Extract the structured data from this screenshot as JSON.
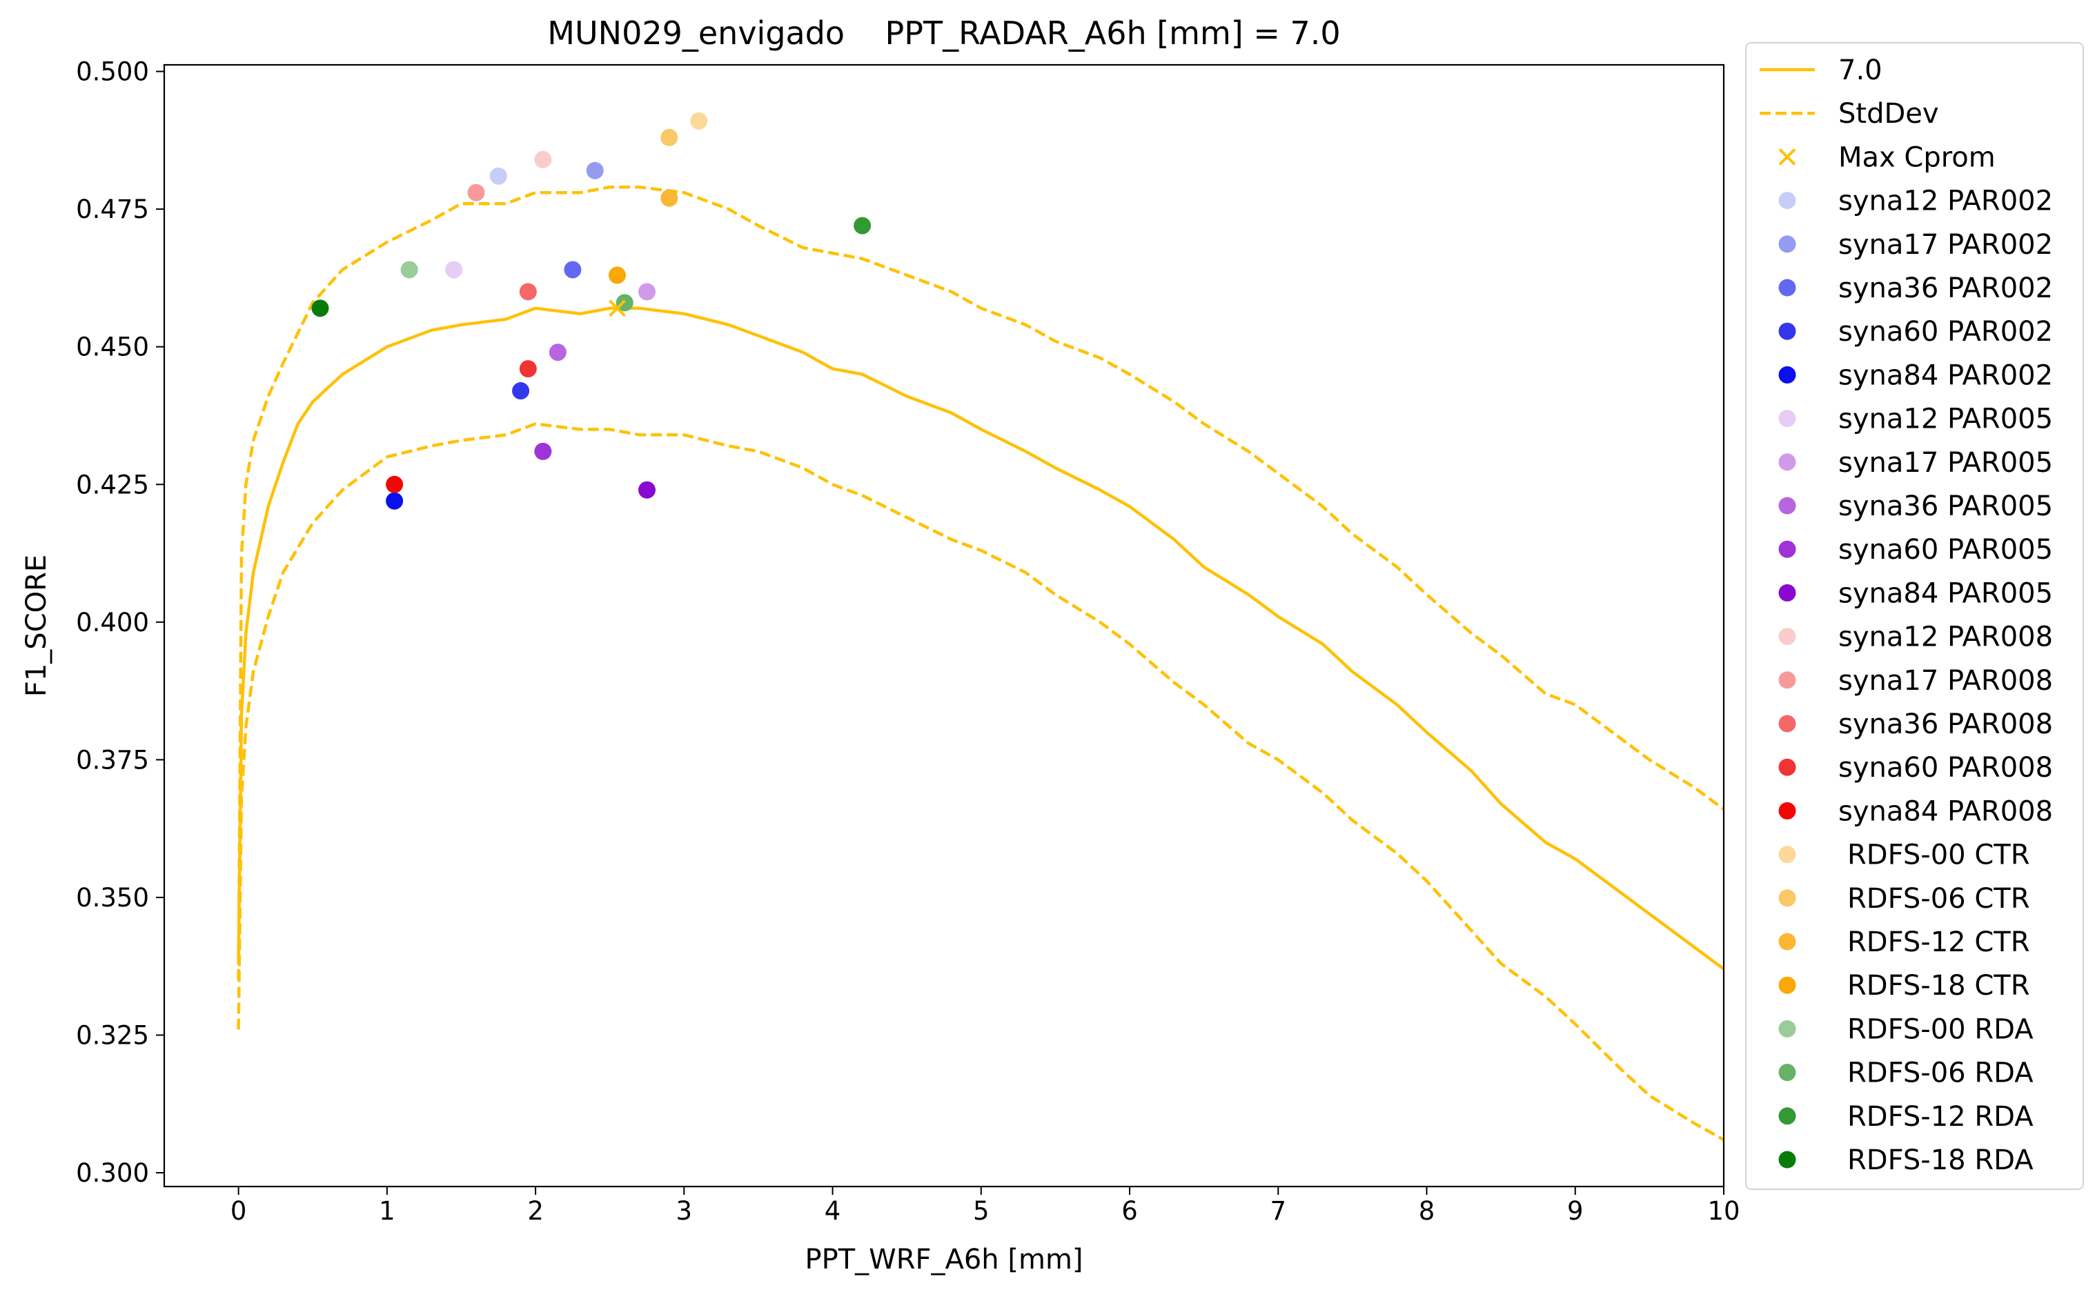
{
  "chart_data": {
    "type": "line",
    "title": "MUN029_envigado    PPT_RADAR_A6h [mm] = 7.0",
    "xlabel": "PPT_WRF_A6h [mm]",
    "ylabel": "F1_SCORE",
    "xlim": [
      -0.5,
      10
    ],
    "ylim": [
      0.2975,
      0.5012
    ],
    "xticks": [
      0,
      1,
      2,
      3,
      4,
      5,
      6,
      7,
      8,
      9,
      10
    ],
    "yticks": [
      0.3,
      0.325,
      0.35,
      0.375,
      0.4,
      0.425,
      0.45,
      0.475,
      0.5
    ],
    "xtick_labels": [
      "0",
      "1",
      "2",
      "3",
      "4",
      "5",
      "6",
      "7",
      "8",
      "9",
      "10"
    ],
    "ytick_labels": [
      "0.300",
      "0.325",
      "0.350",
      "0.375",
      "0.400",
      "0.425",
      "0.450",
      "0.475",
      "0.500"
    ],
    "grid": false,
    "legend_position": "outside-right",
    "line_color": "#ffc107",
    "curves": {
      "mean": {
        "name": "7.0",
        "style": "solid",
        "x": [
          0,
          0.02,
          0.05,
          0.1,
          0.15,
          0.2,
          0.3,
          0.4,
          0.5,
          0.7,
          1.0,
          1.3,
          1.5,
          1.8,
          2.0,
          2.3,
          2.5,
          2.7,
          3.0,
          3.3,
          3.5,
          3.8,
          4.0,
          4.2,
          4.5,
          4.8,
          5.0,
          5.3,
          5.5,
          5.8,
          6.0,
          6.3,
          6.5,
          6.8,
          7.0,
          7.3,
          7.5,
          7.8,
          8.0,
          8.3,
          8.5,
          8.8,
          9.0,
          9.3,
          9.5,
          9.8,
          10.0
        ],
        "y": [
          0.338,
          0.383,
          0.398,
          0.409,
          0.415,
          0.421,
          0.429,
          0.436,
          0.44,
          0.445,
          0.45,
          0.453,
          0.454,
          0.455,
          0.457,
          0.456,
          0.457,
          0.457,
          0.456,
          0.454,
          0.452,
          0.449,
          0.446,
          0.445,
          0.441,
          0.438,
          0.435,
          0.431,
          0.428,
          0.424,
          0.421,
          0.415,
          0.41,
          0.405,
          0.401,
          0.396,
          0.391,
          0.385,
          0.38,
          0.373,
          0.367,
          0.36,
          0.357,
          0.351,
          0.347,
          0.341,
          0.337
        ]
      },
      "upper": {
        "name": "StdDev",
        "style": "dashed",
        "x": [
          0,
          0.02,
          0.05,
          0.1,
          0.2,
          0.3,
          0.5,
          0.7,
          1.0,
          1.3,
          1.5,
          1.8,
          2.0,
          2.3,
          2.5,
          2.7,
          3.0,
          3.3,
          3.5,
          3.8,
          4.0,
          4.2,
          4.5,
          4.8,
          5.0,
          5.3,
          5.5,
          5.8,
          6.0,
          6.3,
          6.5,
          6.8,
          7.0,
          7.3,
          7.5,
          7.8,
          8.0,
          8.3,
          8.5,
          8.8,
          9.0,
          9.3,
          9.5,
          9.8,
          10.0
        ],
        "y": [
          0.335,
          0.412,
          0.425,
          0.433,
          0.441,
          0.447,
          0.458,
          0.464,
          0.469,
          0.473,
          0.476,
          0.476,
          0.478,
          0.478,
          0.479,
          0.479,
          0.478,
          0.475,
          0.472,
          0.468,
          0.467,
          0.466,
          0.463,
          0.46,
          0.457,
          0.454,
          0.451,
          0.448,
          0.445,
          0.44,
          0.436,
          0.431,
          0.427,
          0.421,
          0.416,
          0.41,
          0.405,
          0.398,
          0.394,
          0.387,
          0.385,
          0.379,
          0.375,
          0.37,
          0.366
        ]
      },
      "lower": {
        "style": "dashed",
        "x": [
          0,
          0.02,
          0.05,
          0.1,
          0.2,
          0.3,
          0.5,
          0.7,
          1.0,
          1.3,
          1.5,
          1.8,
          2.0,
          2.3,
          2.5,
          2.7,
          3.0,
          3.3,
          3.5,
          3.8,
          4.0,
          4.2,
          4.5,
          4.8,
          5.0,
          5.3,
          5.5,
          5.8,
          6.0,
          6.3,
          6.5,
          6.8,
          7.0,
          7.3,
          7.5,
          7.8,
          8.0,
          8.3,
          8.5,
          8.8,
          9.0,
          9.3,
          9.5,
          9.8,
          10.0
        ],
        "y": [
          0.326,
          0.368,
          0.381,
          0.391,
          0.401,
          0.409,
          0.418,
          0.424,
          0.43,
          0.432,
          0.433,
          0.434,
          0.436,
          0.435,
          0.435,
          0.434,
          0.434,
          0.432,
          0.431,
          0.428,
          0.425,
          0.423,
          0.419,
          0.415,
          0.413,
          0.409,
          0.405,
          0.4,
          0.396,
          0.389,
          0.385,
          0.378,
          0.375,
          0.369,
          0.364,
          0.358,
          0.353,
          0.344,
          0.338,
          0.332,
          0.327,
          0.319,
          0.314,
          0.309,
          0.306
        ]
      }
    },
    "max_cprom": {
      "name": "Max Cprom",
      "x": 2.55,
      "y": 0.457,
      "color": "#ffc107"
    },
    "points": [
      {
        "name": "syna12 PAR002",
        "x": 1.75,
        "y": 0.481,
        "color": "#c8cdf7"
      },
      {
        "name": "syna17 PAR002",
        "x": 2.4,
        "y": 0.482,
        "color": "#959bf1"
      },
      {
        "name": "syna36 PAR002",
        "x": 2.25,
        "y": 0.464,
        "color": "#6468f0"
      },
      {
        "name": "syna60 PAR002",
        "x": 1.9,
        "y": 0.442,
        "color": "#3337ec"
      },
      {
        "name": "syna84 PAR002",
        "x": 1.05,
        "y": 0.422,
        "color": "#0a0fee"
      },
      {
        "name": "syna12 PAR005",
        "x": 1.45,
        "y": 0.464,
        "color": "#e6cdf3"
      },
      {
        "name": "syna17 PAR005",
        "x": 2.75,
        "y": 0.46,
        "color": "#d19ae8"
      },
      {
        "name": "syna36 PAR005",
        "x": 2.15,
        "y": 0.449,
        "color": "#b765e0"
      },
      {
        "name": "syna60 PAR005",
        "x": 2.05,
        "y": 0.431,
        "color": "#9e33d8"
      },
      {
        "name": "syna84 PAR005",
        "x": 2.75,
        "y": 0.424,
        "color": "#8a09d0"
      },
      {
        "name": "syna12 PAR008",
        "x": 2.05,
        "y": 0.484,
        "color": "#fbcccc"
      },
      {
        "name": "syna17 PAR008",
        "x": 1.6,
        "y": 0.478,
        "color": "#f89a9a"
      },
      {
        "name": "syna36 PAR008",
        "x": 1.95,
        "y": 0.46,
        "color": "#f56868"
      },
      {
        "name": "syna60 PAR008",
        "x": 1.95,
        "y": 0.446,
        "color": "#f23333"
      },
      {
        "name": "syna84 PAR008",
        "x": 1.05,
        "y": 0.425,
        "color": "#f20707"
      },
      {
        "name": "RDFS-00 CTR",
        "x": 3.1,
        "y": 0.491,
        "color": "#fcd899"
      },
      {
        "name": "RDFS-06 CTR",
        "x": 2.9,
        "y": 0.488,
        "color": "#fbc866"
      },
      {
        "name": "RDFS-12 CTR",
        "x": 2.9,
        "y": 0.477,
        "color": "#fbb733"
      },
      {
        "name": "RDFS-18 CTR",
        "x": 2.55,
        "y": 0.463,
        "color": "#fba705"
      },
      {
        "name": "RDFS-00 RDA",
        "x": 1.15,
        "y": 0.464,
        "color": "#99cc99"
      },
      {
        "name": "RDFS-06 RDA",
        "x": 2.6,
        "y": 0.458,
        "color": "#66b266"
      },
      {
        "name": "RDFS-12 RDA",
        "x": 4.2,
        "y": 0.472,
        "color": "#339933"
      },
      {
        "name": "RDFS-18 RDA",
        "x": 0.55,
        "y": 0.457,
        "color": "#087c08"
      }
    ]
  }
}
